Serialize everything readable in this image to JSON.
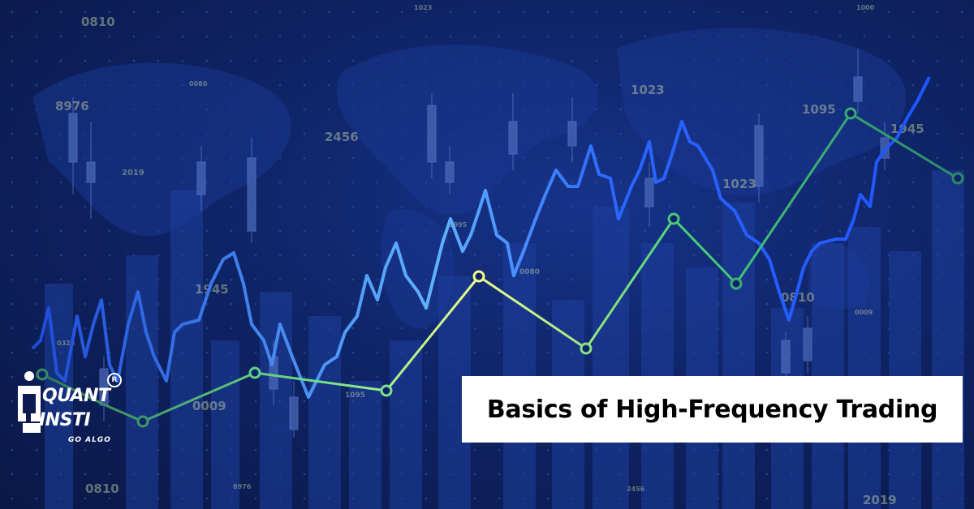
{
  "title": "Basics of High-Frequency Trading",
  "logo": {
    "line1": "QUANT",
    "line2": "INSTI",
    "tagline": "GO ALGO",
    "registered": "R"
  },
  "bg_numbers": [
    "0810",
    "1023",
    "8976",
    "0080",
    "2456",
    "1023",
    "1095",
    "2019",
    "1945",
    "1995",
    "0080",
    "1023",
    "1945",
    "0810",
    "0325",
    "0009",
    "1095",
    "0009",
    "0810",
    "8976",
    "2456",
    "2019",
    "1000"
  ],
  "colors": {
    "background": "#0f2466",
    "blue_line": "#2f6bff",
    "green_line": "#3fc07a",
    "title_bg": "#ffffff",
    "title_text": "#000000"
  }
}
